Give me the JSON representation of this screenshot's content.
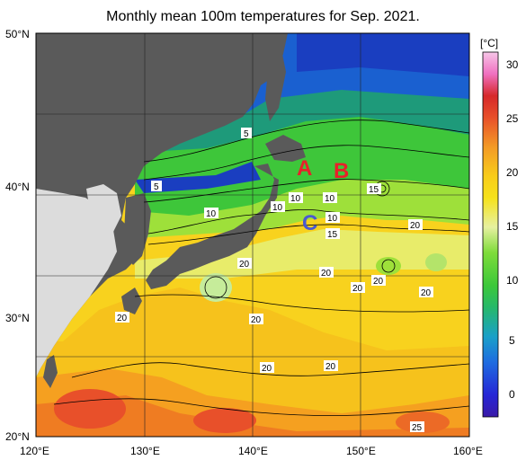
{
  "title": "Monthly mean 100m temperatures for Sep. 2021.",
  "axes": {
    "lat_ticks": [
      "50°N",
      "40°N",
      "30°N",
      "20°N"
    ],
    "lon_ticks": [
      "120°E",
      "130°E",
      "140°E",
      "150°E",
      "160°E"
    ],
    "lon_range": [
      120,
      160
    ],
    "lat_range": [
      20,
      50
    ],
    "grid": true
  },
  "colorbar": {
    "unit": "[°C]",
    "ticks": [
      "30",
      "25",
      "20",
      "15",
      "10",
      "5",
      "0"
    ],
    "range": [
      -2,
      32
    ]
  },
  "contour_labels": [
    "5",
    "5",
    "10",
    "10",
    "10",
    "10",
    "10",
    "15",
    "15",
    "20",
    "20",
    "20",
    "20",
    "20",
    "20",
    "20",
    "20",
    "20",
    "20",
    "25"
  ],
  "points": [
    {
      "label": "A",
      "color": "#e8202a"
    },
    {
      "label": "B",
      "color": "#e8202a"
    },
    {
      "label": "C",
      "color": "#4a5ad0"
    }
  ]
}
